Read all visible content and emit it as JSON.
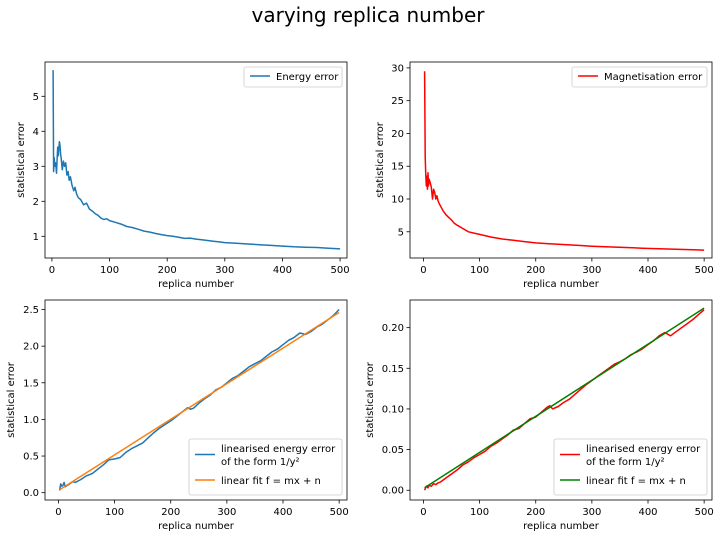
{
  "figure": {
    "suptitle": "varying replica number",
    "background": "#ffffff"
  },
  "chart_data": [
    {
      "type": "line",
      "id": "energy",
      "xlabel": "replica number",
      "ylabel": "statistical error",
      "xlim": [
        -12,
        512
      ],
      "ylim": [
        0.38,
        5.98
      ],
      "xticks": [
        0,
        100,
        200,
        300,
        400,
        500
      ],
      "yticks": [
        1,
        2,
        3,
        4,
        5
      ],
      "legend": "top-right",
      "series": [
        {
          "name": "Energy error",
          "color": "#1f77b4",
          "x": [
            2,
            3,
            4,
            5,
            6,
            7,
            8,
            9,
            10,
            11,
            12,
            13,
            14,
            15,
            16,
            18,
            20,
            22,
            24,
            26,
            28,
            30,
            32,
            35,
            38,
            40,
            43,
            46,
            50,
            55,
            60,
            65,
            70,
            75,
            80,
            85,
            90,
            95,
            100,
            110,
            120,
            130,
            140,
            150,
            160,
            170,
            180,
            190,
            200,
            210,
            220,
            230,
            240,
            250,
            260,
            270,
            280,
            290,
            300,
            320,
            340,
            360,
            380,
            400,
            420,
            440,
            460,
            480,
            500
          ],
          "y": [
            5.75,
            2.85,
            3.25,
            3.0,
            3.1,
            3.0,
            2.8,
            3.2,
            3.55,
            3.3,
            3.5,
            3.7,
            3.6,
            3.35,
            3.25,
            2.9,
            3.15,
            3.0,
            3.1,
            2.75,
            2.85,
            2.6,
            2.7,
            2.45,
            2.3,
            2.4,
            2.2,
            2.1,
            2.05,
            1.9,
            1.95,
            1.78,
            1.72,
            1.65,
            1.6,
            1.52,
            1.48,
            1.5,
            1.45,
            1.4,
            1.35,
            1.28,
            1.25,
            1.2,
            1.15,
            1.12,
            1.08,
            1.05,
            1.02,
            1.0,
            0.97,
            0.94,
            0.95,
            0.92,
            0.9,
            0.88,
            0.86,
            0.84,
            0.82,
            0.8,
            0.78,
            0.76,
            0.74,
            0.72,
            0.7,
            0.69,
            0.68,
            0.66,
            0.64
          ]
        }
      ]
    },
    {
      "type": "line",
      "id": "magnetisation",
      "xlabel": "replica number",
      "ylabel": "statistical error",
      "xlim": [
        -24,
        514
      ],
      "ylim": [
        1.0,
        30.9
      ],
      "xticks": [
        0,
        100,
        200,
        300,
        400,
        500
      ],
      "yticks": [
        5,
        10,
        15,
        20,
        25,
        30
      ],
      "legend": "top-right",
      "series": [
        {
          "name": "Magnetisation error",
          "color": "#ff0000",
          "x": [
            2,
            3,
            4,
            5,
            6,
            7,
            8,
            9,
            10,
            12,
            14,
            16,
            18,
            20,
            22,
            24,
            26,
            28,
            30,
            35,
            40,
            45,
            50,
            55,
            60,
            70,
            80,
            90,
            100,
            120,
            140,
            160,
            180,
            200,
            220,
            240,
            260,
            280,
            300,
            330,
            360,
            390,
            420,
            450,
            480,
            500
          ],
          "y": [
            29.5,
            16.5,
            14.0,
            12.0,
            13.5,
            11.5,
            14.0,
            12.0,
            13.0,
            12.5,
            11.8,
            10.0,
            11.5,
            11.0,
            10.0,
            10.5,
            9.7,
            9.3,
            9.0,
            8.2,
            7.6,
            7.2,
            6.8,
            6.3,
            6.0,
            5.5,
            5.0,
            4.8,
            4.6,
            4.2,
            3.9,
            3.7,
            3.5,
            3.3,
            3.2,
            3.1,
            3.0,
            2.9,
            2.8,
            2.7,
            2.6,
            2.5,
            2.4,
            2.35,
            2.25,
            2.2
          ]
        }
      ]
    },
    {
      "type": "line",
      "id": "energy-linear",
      "xlabel": "replica number",
      "ylabel": "statistical error",
      "xlim": [
        -24,
        514
      ],
      "ylim": [
        -0.1,
        2.63
      ],
      "xticks": [
        0,
        100,
        200,
        300,
        400,
        500
      ],
      "yticks": [
        0.0,
        0.5,
        1.0,
        1.5,
        2.0,
        2.5
      ],
      "legend": "bottom-right",
      "series": [
        {
          "name": "linearised energy error\n of the form 1/y²",
          "color": "#1f77b4",
          "x": [
            2,
            4,
            6,
            8,
            10,
            12,
            14,
            16,
            20,
            25,
            30,
            40,
            50,
            60,
            70,
            80,
            90,
            100,
            110,
            120,
            130,
            140,
            150,
            160,
            170,
            180,
            190,
            200,
            210,
            220,
            230,
            235,
            240,
            250,
            260,
            270,
            280,
            290,
            300,
            310,
            320,
            330,
            340,
            350,
            360,
            370,
            380,
            390,
            400,
            410,
            420,
            430,
            440,
            450,
            460,
            470,
            480,
            490,
            500
          ],
          "y": [
            0.03,
            0.12,
            0.09,
            0.1,
            0.14,
            0.08,
            0.09,
            0.1,
            0.12,
            0.15,
            0.14,
            0.18,
            0.23,
            0.26,
            0.32,
            0.38,
            0.45,
            0.46,
            0.48,
            0.55,
            0.6,
            0.64,
            0.68,
            0.75,
            0.82,
            0.88,
            0.93,
            0.98,
            1.04,
            1.1,
            1.16,
            1.14,
            1.15,
            1.22,
            1.28,
            1.33,
            1.4,
            1.44,
            1.5,
            1.56,
            1.6,
            1.66,
            1.72,
            1.76,
            1.8,
            1.86,
            1.92,
            1.96,
            2.02,
            2.08,
            2.12,
            2.18,
            2.16,
            2.2,
            2.26,
            2.3,
            2.36,
            2.42,
            2.5
          ]
        },
        {
          "name": "linear fit f = mx + n",
          "color": "#ff7f0e",
          "x": [
            2,
            500
          ],
          "y": [
            0.04,
            2.46
          ]
        }
      ]
    },
    {
      "type": "line",
      "id": "magnetisation-linear",
      "xlabel": "replica number",
      "ylabel": "statistical error",
      "xlim": [
        -24,
        514
      ],
      "ylim": [
        -0.012,
        0.234
      ],
      "xticks": [
        0,
        100,
        200,
        300,
        400,
        500
      ],
      "yticks": [
        0.0,
        0.05,
        0.1,
        0.15,
        0.2
      ],
      "legend": "bottom-right",
      "series": [
        {
          "name": "linearised energy error\n of the form 1/y²",
          "color": "#ff0000",
          "x": [
            2,
            5,
            8,
            10,
            14,
            18,
            22,
            26,
            30,
            40,
            50,
            60,
            70,
            80,
            90,
            100,
            110,
            120,
            130,
            140,
            150,
            160,
            170,
            180,
            190,
            200,
            210,
            220,
            225,
            230,
            240,
            250,
            260,
            270,
            280,
            290,
            300,
            310,
            320,
            330,
            340,
            350,
            360,
            370,
            380,
            390,
            400,
            410,
            420,
            430,
            440,
            450,
            460,
            470,
            480,
            490,
            500
          ],
          "y": [
            0.0,
            0.005,
            0.003,
            0.006,
            0.005,
            0.008,
            0.007,
            0.009,
            0.01,
            0.015,
            0.02,
            0.025,
            0.031,
            0.035,
            0.04,
            0.044,
            0.048,
            0.054,
            0.058,
            0.063,
            0.068,
            0.074,
            0.076,
            0.082,
            0.088,
            0.09,
            0.096,
            0.102,
            0.104,
            0.1,
            0.103,
            0.108,
            0.112,
            0.118,
            0.124,
            0.13,
            0.135,
            0.14,
            0.145,
            0.15,
            0.155,
            0.158,
            0.162,
            0.167,
            0.17,
            0.174,
            0.179,
            0.184,
            0.19,
            0.194,
            0.19,
            0.195,
            0.2,
            0.205,
            0.21,
            0.216,
            0.222
          ]
        },
        {
          "name": "linear fit f = mx + n",
          "color": "#008000",
          "x": [
            2,
            500
          ],
          "y": [
            0.003,
            0.224
          ]
        }
      ]
    }
  ]
}
